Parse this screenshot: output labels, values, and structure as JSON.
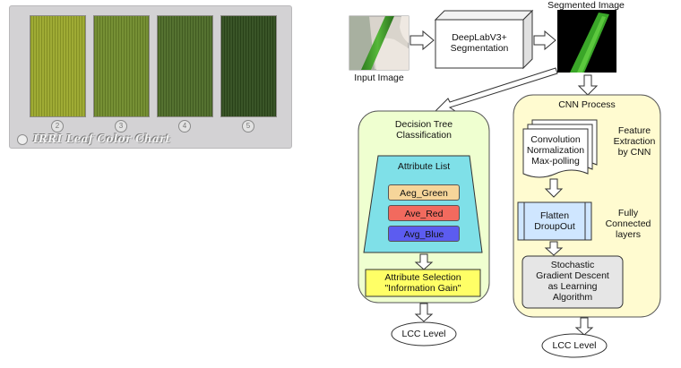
{
  "lcc_chart": {
    "title": "IRRI Leaf Color Chart",
    "strips": [
      {
        "number": "2",
        "color": "#9aa72a"
      },
      {
        "number": "3",
        "color": "#6f8a2a"
      },
      {
        "number": "4",
        "color": "#4c6a26"
      },
      {
        "number": "5",
        "color": "#2f4c1c"
      }
    ]
  },
  "input_image": {
    "label": "Input Image"
  },
  "segmentation": {
    "label": "DeepLabV3+\nSegmentation"
  },
  "segmented_image": {
    "label": "Segmented Image"
  },
  "decision_tree": {
    "title": "Decision Tree\nClassification",
    "attribute_list_title": "Attribute List",
    "attributes": [
      {
        "label": "Aeg_Green",
        "color": "#f6d59a"
      },
      {
        "label": "Ave_Red",
        "color": "#f26a5e"
      },
      {
        "label": "Avg_Blue",
        "color": "#5c5cf0"
      }
    ],
    "selection_line1": "Attribute Selection",
    "selection_line2": "\"Information Gain\"",
    "output": "LCC Level"
  },
  "cnn": {
    "title": "CNN Process",
    "stack_text": "Convolution\nNormalization\nMax-polling",
    "feature_label": "Feature\nExtraction\nby CNN",
    "flatten_text": "Flatten\nDroupOut",
    "fully_connected_label": "Fully\nConnected\nlayers",
    "sgd_text": "Stochastic\nGradient Descent\nas Learning\nAlgorithm",
    "output": "LCC Level"
  },
  "colors": {
    "panel_fill": "#efffd0",
    "cnn_panel_fill": "#fffbd0",
    "trapezoid_fill": "#7fe0e8",
    "selection_fill": "#ffff66",
    "flatten_fill": "#cfe6ff",
    "sgd_fill": "#e6e6e6",
    "leaf_green": "#3e9a2a"
  }
}
